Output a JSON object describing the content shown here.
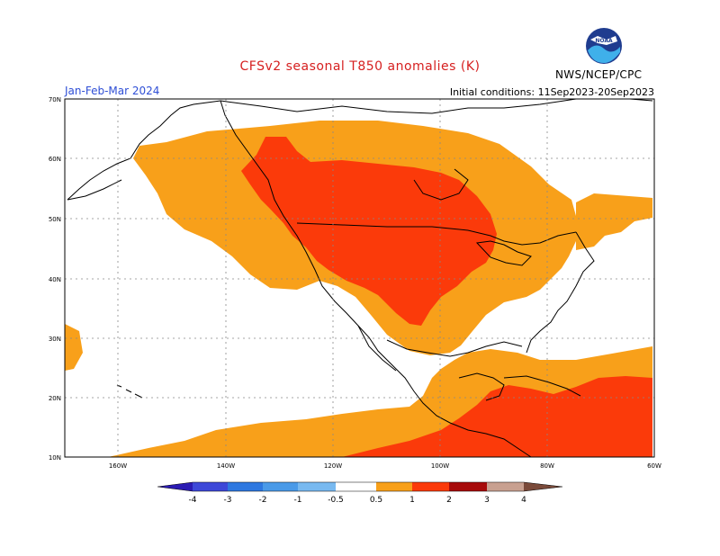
{
  "title": "CFSv2 seasonal T850 anomalies (K)",
  "season": "Jan-Feb-Mar 2024",
  "initial_conditions": "Initial conditions: 11Sep2023-20Sep2023",
  "organization": "NWS/NCEP/CPC",
  "logo_text": "NOAA",
  "lat_labels": [
    "70N",
    "60N",
    "50N",
    "40N",
    "30N",
    "20N",
    "10N"
  ],
  "lon_labels": [
    "160W",
    "140W",
    "120W",
    "100W",
    "80W",
    "60W"
  ],
  "colorbar": {
    "labels": [
      "-4",
      "-3",
      "-2",
      "-1",
      "-0.5",
      "0.5",
      "1",
      "2",
      "3",
      "4"
    ],
    "colors": [
      "#2b1bb3",
      "#3d48d8",
      "#2e78e0",
      "#4a9ae8",
      "#78b9f0",
      "#ffffff",
      "#f8a01a",
      "#fb3a0a",
      "#a70b0b",
      "#c8a090",
      "#7a4a3a"
    ]
  },
  "legend_colors": {
    "anom_05_1": "#f8a01a",
    "anom_1_2": "#fb3a0a",
    "land_outline": "#000000",
    "grid": "#888888"
  }
}
